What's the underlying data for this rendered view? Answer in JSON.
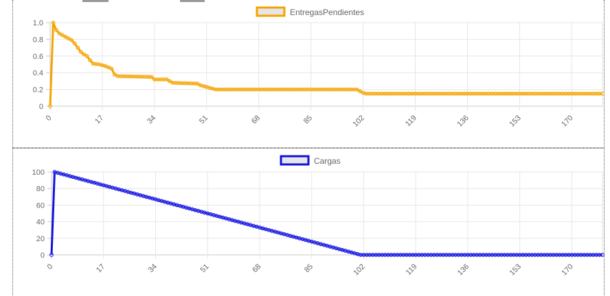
{
  "chart_data": [
    {
      "type": "line",
      "title": "",
      "xlabel": "",
      "ylabel": "",
      "color": "#f5a300",
      "legend_position": "top",
      "grid": true,
      "x_ticks": [
        "0",
        "17",
        "34",
        "51",
        "68",
        "85",
        "102",
        "119",
        "136",
        "153",
        "170"
      ],
      "y_ticks": [
        "0",
        "0.2",
        "0.4",
        "0.6",
        "0.8",
        "1.0"
      ],
      "xlim": [
        0,
        180
      ],
      "ylim": [
        0,
        1.0
      ],
      "series": [
        {
          "name": "EntregasPendientes",
          "points": [
            [
              0,
              0
            ],
            [
              1,
              1.0
            ],
            [
              2,
              0.91
            ],
            [
              3,
              0.87
            ],
            [
              4,
              0.85
            ],
            [
              5,
              0.83
            ],
            [
              6,
              0.81
            ],
            [
              7,
              0.79
            ],
            [
              8,
              0.75
            ],
            [
              9,
              0.7
            ],
            [
              10,
              0.65
            ],
            [
              11,
              0.62
            ],
            [
              12,
              0.6
            ],
            [
              13,
              0.55
            ],
            [
              14,
              0.51
            ],
            [
              16,
              0.5
            ],
            [
              18,
              0.48
            ],
            [
              20,
              0.45
            ],
            [
              21,
              0.38
            ],
            [
              22,
              0.36
            ],
            [
              33,
              0.35
            ],
            [
              34,
              0.32
            ],
            [
              38,
              0.32
            ],
            [
              39,
              0.3
            ],
            [
              40,
              0.28
            ],
            [
              48,
              0.27
            ],
            [
              49,
              0.25
            ],
            [
              51,
              0.23
            ],
            [
              53,
              0.21
            ],
            [
              54,
              0.2
            ],
            [
              100,
              0.2
            ],
            [
              101,
              0.18
            ],
            [
              102,
              0.16
            ],
            [
              103,
              0.15
            ],
            [
              180,
              0.15
            ]
          ]
        }
      ]
    },
    {
      "type": "line",
      "title": "",
      "xlabel": "",
      "ylabel": "",
      "color": "#1010e0",
      "legend_position": "top",
      "grid": true,
      "x_ticks": [
        "0",
        "17",
        "34",
        "51",
        "68",
        "85",
        "102",
        "119",
        "136",
        "153",
        "170"
      ],
      "y_ticks": [
        "0",
        "20",
        "40",
        "60",
        "80",
        "100"
      ],
      "xlim": [
        0,
        180
      ],
      "ylim": [
        0,
        100
      ],
      "series": [
        {
          "name": "Cargas",
          "points": [
            [
              0,
              0
            ],
            [
              1,
              100
            ],
            [
              101,
              0
            ],
            [
              180,
              0
            ]
          ]
        }
      ]
    }
  ]
}
